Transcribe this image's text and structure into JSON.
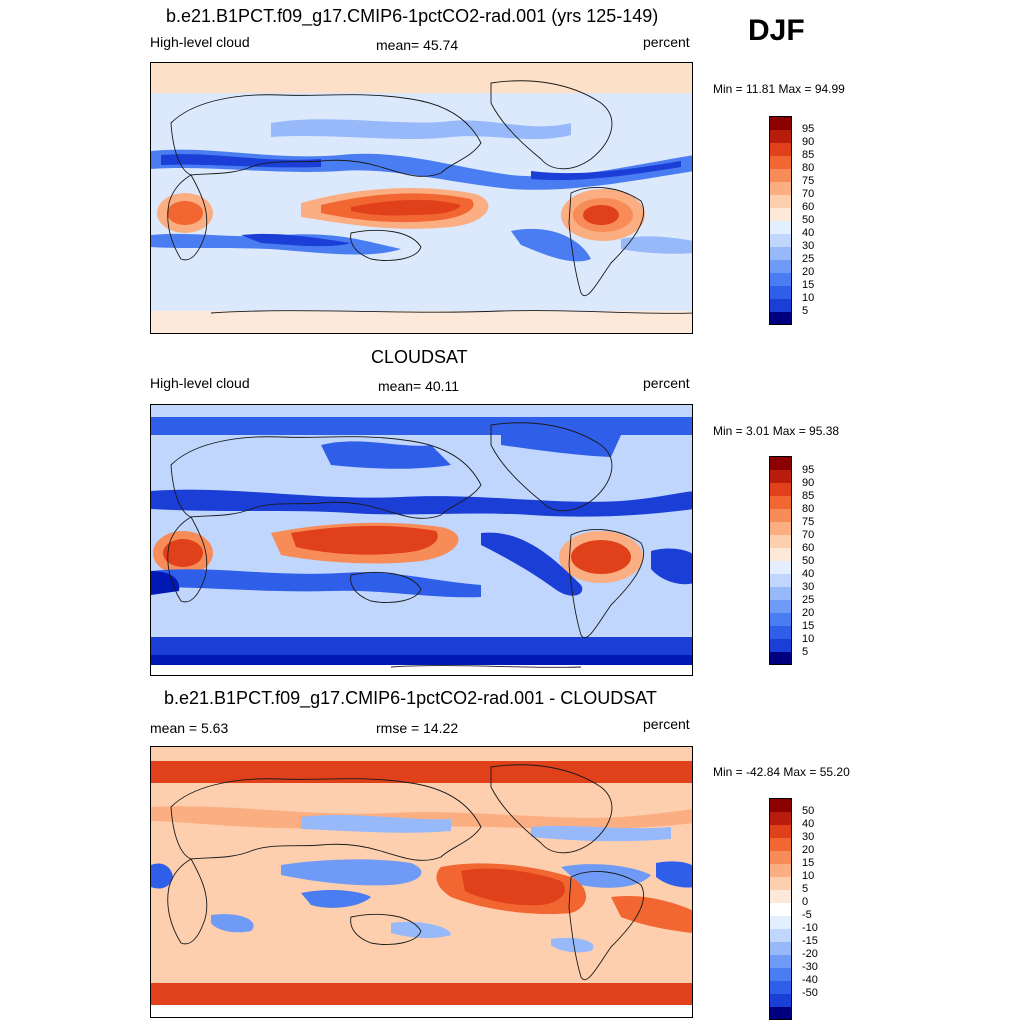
{
  "season_label": "DJF",
  "colors": {
    "abs_scale": [
      "#00007f",
      "#0018b4",
      "#1a3ed6",
      "#2f5ee8",
      "#4a7df2",
      "#6f9bf7",
      "#97b9fa",
      "#c0d6fd",
      "#e3eefe",
      "#fde9d9",
      "#fdcfae",
      "#fbae82",
      "#f88c58",
      "#f26632",
      "#e0401a",
      "#b81c0c",
      "#8b0000"
    ],
    "diff_scale": [
      "#00007f",
      "#0018b4",
      "#1a3ed6",
      "#2f5ee8",
      "#4a7df2",
      "#6f9bf7",
      "#97b9fa",
      "#c0d6fd",
      "#e3eefe",
      "#ffffff",
      "#fde9d9",
      "#fdcfae",
      "#fbae82",
      "#f88c58",
      "#f26632",
      "#e0401a",
      "#b81c0c",
      "#8b0000"
    ],
    "continent_outline": "#1a1a1a"
  },
  "panels": [
    {
      "title": "b.e21.B1PCT.f09_g17.CMIP6-1pctCO2-rad.001 (yrs 125-149)",
      "left_label": "High-level cloud",
      "center_label": "mean=  45.74",
      "right_label": "percent",
      "minmax": "Min =  11.81 Max =  94.99",
      "colorbar_ticks": [
        "95",
        "90",
        "85",
        "80",
        "75",
        "70",
        "60",
        "50",
        "40",
        "30",
        "25",
        "20",
        "15",
        "10",
        "5"
      ]
    },
    {
      "title": "CLOUDSAT",
      "left_label": "High-level cloud",
      "center_label": "mean=  40.11",
      "right_label": "percent",
      "minmax": "Min =   3.01 Max =  95.38",
      "colorbar_ticks": [
        "95",
        "90",
        "85",
        "80",
        "75",
        "70",
        "60",
        "50",
        "40",
        "30",
        "25",
        "20",
        "15",
        "10",
        "5"
      ]
    },
    {
      "title": "b.e21.B1PCT.f09_g17.CMIP6-1pctCO2-rad.001 - CLOUDSAT",
      "left_label": "mean =   5.63",
      "center_label": "rmse =  14.22",
      "right_label": "percent",
      "minmax": "Min = -42.84 Max =  55.20",
      "colorbar_ticks": [
        "50",
        "40",
        "30",
        "20",
        "15",
        "10",
        "5",
        "0",
        "-5",
        "-10",
        "-15",
        "-20",
        "-30",
        "-40",
        "-50"
      ]
    }
  ]
}
